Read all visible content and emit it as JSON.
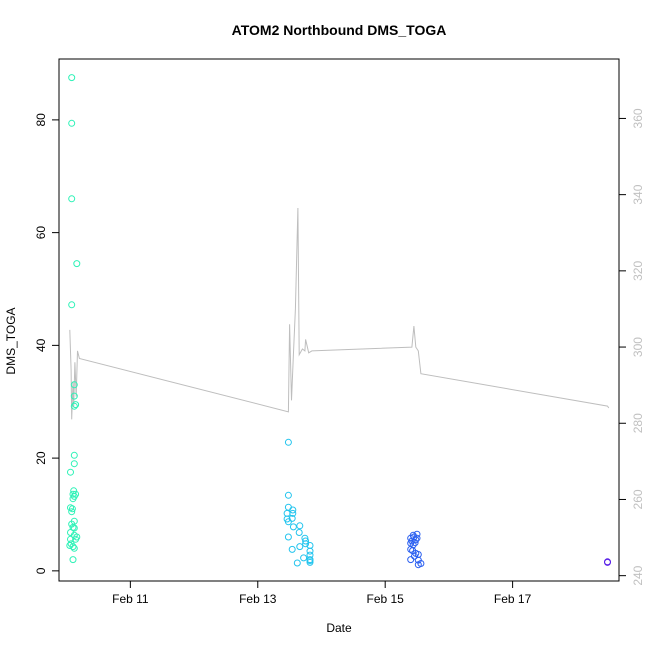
{
  "chart_data": {
    "type": "scatter",
    "title": "ATOM2 Northbound DMS_TOGA",
    "xlabel": "Date",
    "ylabel": "DMS_TOGA",
    "x_ticks": [
      {
        "label": "Feb 11",
        "day": 11.0
      },
      {
        "label": "Feb 13",
        "day": 13.0
      },
      {
        "label": "Feb 15",
        "day": 15.0
      },
      {
        "label": "Feb 17",
        "day": 17.0
      }
    ],
    "xlim": [
      9.88,
      18.67
    ],
    "ylim": [
      -1.8,
      90.8
    ],
    "y_ticks": [
      0,
      20,
      40,
      60,
      80
    ],
    "y2_ticks": [
      240,
      260,
      280,
      300,
      320,
      340,
      360
    ],
    "y2lim": [
      238.6,
      375.6
    ],
    "grid": false,
    "legend": "none",
    "colors": {
      "line": "#bebebe",
      "right_axis": "#c0c0c0"
    },
    "series": [
      {
        "color": "#2ef2b7",
        "points": [
          [
            10.08,
            87.5
          ],
          [
            10.08,
            79.4
          ],
          [
            10.08,
            66.0
          ],
          [
            10.16,
            54.5
          ],
          [
            10.08,
            47.2
          ],
          [
            10.12,
            33.0
          ],
          [
            10.12,
            31.0
          ],
          [
            10.14,
            29.5
          ],
          [
            10.12,
            29.2
          ],
          [
            10.12,
            20.5
          ],
          [
            10.12,
            19.0
          ],
          [
            10.06,
            17.5
          ],
          [
            10.11,
            14.2
          ],
          [
            10.1,
            13.6
          ],
          [
            10.14,
            13.6
          ],
          [
            10.12,
            13.2
          ],
          [
            10.1,
            12.8
          ],
          [
            10.06,
            11.2
          ],
          [
            10.09,
            11.0
          ],
          [
            10.08,
            10.5
          ],
          [
            10.12,
            8.8
          ],
          [
            10.08,
            8.3
          ],
          [
            10.1,
            7.7
          ],
          [
            10.12,
            7.6
          ],
          [
            10.06,
            6.8
          ],
          [
            10.12,
            6.3
          ],
          [
            10.16,
            6.0
          ],
          [
            10.06,
            5.6
          ],
          [
            10.14,
            5.6
          ],
          [
            10.07,
            4.8
          ],
          [
            10.05,
            4.5
          ],
          [
            10.1,
            4.3
          ],
          [
            10.12,
            4.0
          ],
          [
            10.1,
            2.0
          ]
        ]
      },
      {
        "color": "#22c4ee",
        "points": [
          [
            13.48,
            22.8
          ],
          [
            13.48,
            13.4
          ],
          [
            13.48,
            11.3
          ],
          [
            13.55,
            10.8
          ],
          [
            13.55,
            10.2
          ],
          [
            13.46,
            10.2
          ],
          [
            13.46,
            9.2
          ],
          [
            13.54,
            9.3
          ],
          [
            13.48,
            8.7
          ],
          [
            13.66,
            8.0
          ],
          [
            13.56,
            7.8
          ],
          [
            13.65,
            6.8
          ],
          [
            13.48,
            6.0
          ],
          [
            13.74,
            5.8
          ],
          [
            13.75,
            5.3
          ],
          [
            13.75,
            4.8
          ],
          [
            13.82,
            4.5
          ],
          [
            13.66,
            4.3
          ],
          [
            13.54,
            3.8
          ],
          [
            13.82,
            3.5
          ],
          [
            13.82,
            2.8
          ],
          [
            13.72,
            2.3
          ],
          [
            13.82,
            2.0
          ],
          [
            13.82,
            1.8
          ],
          [
            13.82,
            1.5
          ],
          [
            13.62,
            1.4
          ]
        ]
      },
      {
        "color": "#2a5ff0",
        "points": [
          [
            15.44,
            6.3
          ],
          [
            15.5,
            6.5
          ],
          [
            15.45,
            6.0
          ],
          [
            15.5,
            5.8
          ],
          [
            15.4,
            5.8
          ],
          [
            15.48,
            5.5
          ],
          [
            15.42,
            5.3
          ],
          [
            15.47,
            5.0
          ],
          [
            15.4,
            4.9
          ],
          [
            15.44,
            4.6
          ],
          [
            15.4,
            3.8
          ],
          [
            15.43,
            3.6
          ],
          [
            15.48,
            3.1
          ],
          [
            15.52,
            2.9
          ],
          [
            15.46,
            2.6
          ],
          [
            15.4,
            2.0
          ],
          [
            15.52,
            1.9
          ],
          [
            15.56,
            1.3
          ],
          [
            15.52,
            1.1
          ]
        ]
      },
      {
        "color": "#5a22e8",
        "points": [
          [
            18.49,
            1.6
          ],
          [
            18.49,
            1.5
          ]
        ]
      }
    ],
    "line_series": {
      "axis": "right",
      "points": [
        [
          10.05,
          304.5
        ],
        [
          10.07,
          294.0
        ],
        [
          10.08,
          281.0
        ],
        [
          10.1,
          291.0
        ],
        [
          10.11,
          284.5
        ],
        [
          10.13,
          296.0
        ],
        [
          10.15,
          287.0
        ],
        [
          10.17,
          299.0
        ],
        [
          10.2,
          297.0
        ],
        [
          13.48,
          283.0
        ],
        [
          13.5,
          306.0
        ],
        [
          13.53,
          286.0
        ],
        [
          13.56,
          298.0
        ],
        [
          13.59,
          310.0
        ],
        [
          13.63,
          336.5
        ],
        [
          13.65,
          298.0
        ],
        [
          13.7,
          299.5
        ],
        [
          13.74,
          299.0
        ],
        [
          13.75,
          302.0
        ],
        [
          13.8,
          298.5
        ],
        [
          13.85,
          299.0
        ],
        [
          15.42,
          300.0
        ],
        [
          15.45,
          305.5
        ],
        [
          15.48,
          300.0
        ],
        [
          15.52,
          299.0
        ],
        [
          15.56,
          293.0
        ],
        [
          18.49,
          284.5
        ],
        [
          18.51,
          284.0
        ]
      ]
    }
  }
}
